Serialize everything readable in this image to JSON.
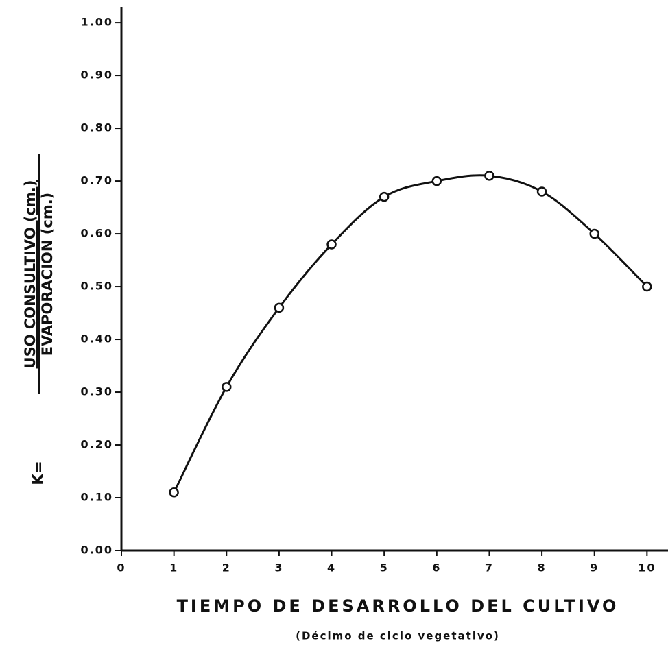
{
  "chart_data": {
    "type": "line",
    "x_label": "TIEMPO DE DESARROLLO DEL CULTIVO",
    "x_sublabel": "(Décimo de ciclo vegetativo)",
    "y_label_prefix": "K=",
    "y_label_numerator": "USO CONSULTIVO (cm.)",
    "y_label_denominator": "EVAPORACION (cm.)",
    "x": [
      1,
      2,
      3,
      4,
      5,
      6,
      7,
      8,
      9,
      10
    ],
    "series": [
      {
        "color": "#111111",
        "values": [
          0.11,
          0.31,
          0.46,
          0.58,
          0.67,
          0.7,
          0.71,
          0.68,
          0.6,
          0.5
        ]
      }
    ],
    "xlim": [
      0,
      10.4
    ],
    "ylim": [
      0,
      1.03
    ],
    "xticks": [
      0,
      1,
      2,
      3,
      4,
      5,
      6,
      7,
      8,
      9,
      10
    ],
    "yticks": [
      {
        "value": 0,
        "label": "0.00"
      },
      {
        "value": 0.1,
        "label": "0.10"
      },
      {
        "value": 0.2,
        "label": "0.20"
      },
      {
        "value": 0.3,
        "label": "0.30"
      },
      {
        "value": 0.4,
        "label": "0.40"
      },
      {
        "value": 0.5,
        "label": "0.50"
      },
      {
        "value": 0.6,
        "label": "0.60"
      },
      {
        "value": 0.7,
        "label": "0.70"
      },
      {
        "value": 0.8,
        "label": "0.80"
      },
      {
        "value": 0.9,
        "label": "0.90"
      },
      {
        "value": 1.0,
        "label": "1.00"
      }
    ]
  }
}
